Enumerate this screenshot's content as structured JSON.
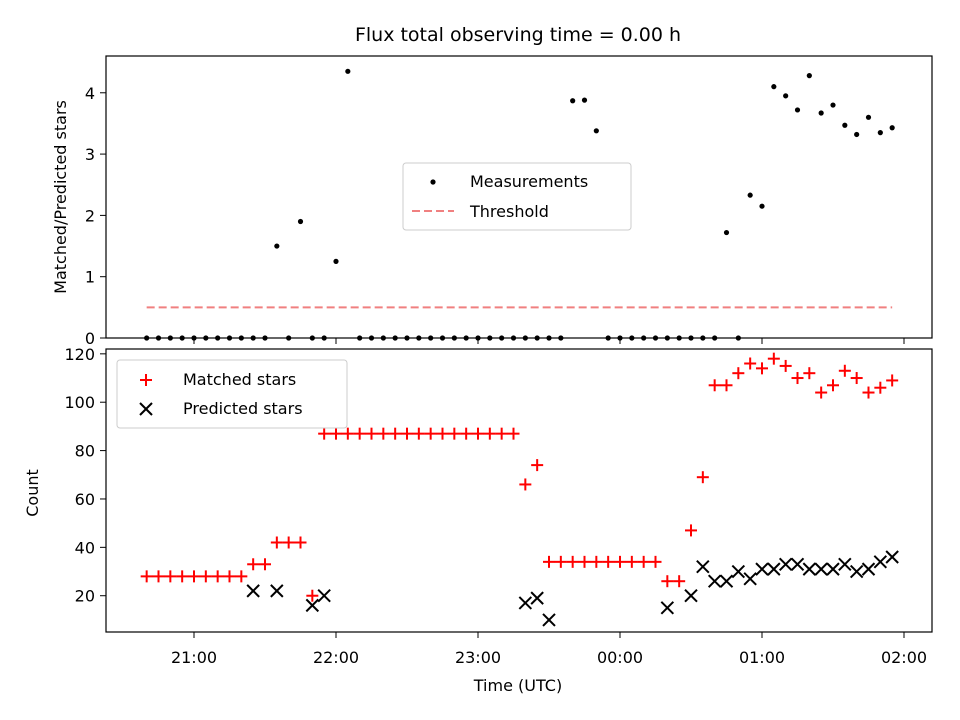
{
  "chart_data": [
    {
      "type": "scatter",
      "title": "Flux total observing time = 0.00 h",
      "xlabel": "",
      "ylabel": "Matched/Predicted stars",
      "ylim": [
        0,
        4.6
      ],
      "yticks": [
        "0",
        "1",
        "2",
        "3",
        "4"
      ],
      "legend_position": "center",
      "series": [
        {
          "name": "Measurements",
          "marker": "dot",
          "color": "#000000",
          "x": [
            -200,
            -195,
            -190,
            -185,
            -180,
            -175,
            -170,
            -165,
            -160,
            -155,
            -150,
            -145,
            -140,
            -135,
            -130,
            -125,
            -120,
            -115,
            -110,
            -105,
            -100,
            -95,
            -90,
            -85,
            -80,
            -75,
            -70,
            -65,
            -60,
            -55,
            -50,
            -45,
            -40,
            -35,
            -30,
            -25,
            -20,
            -15,
            -10,
            -5,
            0,
            5,
            10,
            15,
            20,
            25,
            30,
            35,
            40,
            45,
            50,
            55,
            60,
            65,
            70,
            75,
            80,
            85,
            90,
            95,
            100,
            105,
            110,
            115
          ],
          "y": [
            0,
            0,
            0,
            0,
            0,
            0,
            0,
            0,
            0,
            0,
            0,
            1.5,
            0,
            1.9,
            0,
            0,
            1.25,
            4.35,
            0,
            0,
            0,
            0,
            0,
            0,
            0,
            0,
            0,
            0,
            0,
            0,
            0,
            0,
            0,
            0,
            0,
            0,
            3.87,
            3.88,
            3.38,
            0,
            0,
            0,
            0,
            0,
            0,
            0,
            0,
            0,
            0,
            1.72,
            0,
            2.33,
            2.15,
            4.1,
            3.95,
            3.72,
            4.28,
            3.67,
            3.8,
            3.47,
            3.32,
            3.6,
            3.35,
            3.43
          ]
        },
        {
          "name": "Threshold",
          "style": "dashed",
          "color": "#f08080",
          "x": [
            -200,
            115
          ],
          "y": [
            0.5,
            0.5
          ]
        }
      ]
    },
    {
      "type": "scatter",
      "title": "",
      "xlabel": "Time (UTC)",
      "ylabel": "Count",
      "x_tick_labels": [
        "21:00",
        "22:00",
        "23:00",
        "00:00",
        "01:00",
        "02:00"
      ],
      "ylim": [
        5,
        122
      ],
      "yticks": [
        "20",
        "40",
        "60",
        "80",
        "100",
        "120"
      ],
      "legend_position": "upper left",
      "series": [
        {
          "name": "Matched stars",
          "marker": "plus",
          "color": "#ff0000",
          "points": [
            [
              "20:40",
              28
            ],
            [
              "20:45",
              28
            ],
            [
              "20:50",
              28
            ],
            [
              "20:55",
              28
            ],
            [
              "21:00",
              28
            ],
            [
              "21:05",
              28
            ],
            [
              "21:10",
              28
            ],
            [
              "21:15",
              28
            ],
            [
              "21:20",
              28
            ],
            [
              "21:25",
              33
            ],
            [
              "21:30",
              33
            ],
            [
              "21:35",
              42
            ],
            [
              "21:40",
              42
            ],
            [
              "21:45",
              42
            ],
            [
              "21:50",
              20
            ],
            [
              "21:55",
              87
            ],
            [
              "22:00",
              87
            ],
            [
              "22:05",
              87
            ],
            [
              "22:10",
              87
            ],
            [
              "22:15",
              87
            ],
            [
              "22:20",
              87
            ],
            [
              "22:25",
              87
            ],
            [
              "22:30",
              87
            ],
            [
              "22:35",
              87
            ],
            [
              "22:40",
              87
            ],
            [
              "22:45",
              87
            ],
            [
              "22:50",
              87
            ],
            [
              "22:55",
              87
            ],
            [
              "23:00",
              87
            ],
            [
              "23:05",
              87
            ],
            [
              "23:10",
              87
            ],
            [
              "23:15",
              87
            ],
            [
              "23:20",
              66
            ],
            [
              "23:25",
              74
            ],
            [
              "23:30",
              34
            ],
            [
              "23:35",
              34
            ],
            [
              "23:40",
              34
            ],
            [
              "23:45",
              34
            ],
            [
              "23:50",
              34
            ],
            [
              "23:55",
              34
            ],
            [
              "00:00",
              34
            ],
            [
              "00:05",
              34
            ],
            [
              "00:10",
              34
            ],
            [
              "00:15",
              34
            ],
            [
              "00:20",
              26
            ],
            [
              "00:25",
              26
            ],
            [
              "00:30",
              47
            ],
            [
              "00:35",
              69
            ],
            [
              "00:40",
              107
            ],
            [
              "00:45",
              107
            ],
            [
              "00:50",
              112
            ],
            [
              "00:55",
              116
            ],
            [
              "01:00",
              114
            ],
            [
              "01:05",
              118
            ],
            [
              "01:10",
              115
            ],
            [
              "01:15",
              110
            ],
            [
              "01:20",
              112
            ],
            [
              "01:25",
              104
            ],
            [
              "01:30",
              107
            ],
            [
              "01:35",
              113
            ],
            [
              "01:40",
              110
            ],
            [
              "01:45",
              104
            ],
            [
              "01:50",
              106
            ],
            [
              "01:55",
              109
            ]
          ]
        },
        {
          "name": "Predicted stars",
          "marker": "x",
          "color": "#000000",
          "points": [
            [
              "21:25",
              22
            ],
            [
              "21:35",
              22
            ],
            [
              "21:50",
              16
            ],
            [
              "21:55",
              20
            ],
            [
              "23:20",
              17
            ],
            [
              "23:25",
              19
            ],
            [
              "23:30",
              10
            ],
            [
              "00:20",
              15
            ],
            [
              "00:30",
              20
            ],
            [
              "00:35",
              32
            ],
            [
              "00:40",
              26
            ],
            [
              "00:45",
              26
            ],
            [
              "00:50",
              30
            ],
            [
              "00:55",
              27
            ],
            [
              "01:00",
              31
            ],
            [
              "01:05",
              31
            ],
            [
              "01:10",
              33
            ],
            [
              "01:15",
              33
            ],
            [
              "01:20",
              31
            ],
            [
              "01:25",
              31
            ],
            [
              "01:30",
              31
            ],
            [
              "01:35",
              33
            ],
            [
              "01:40",
              30
            ],
            [
              "01:45",
              31
            ],
            [
              "01:50",
              34
            ],
            [
              "01:55",
              36
            ]
          ]
        }
      ]
    }
  ]
}
